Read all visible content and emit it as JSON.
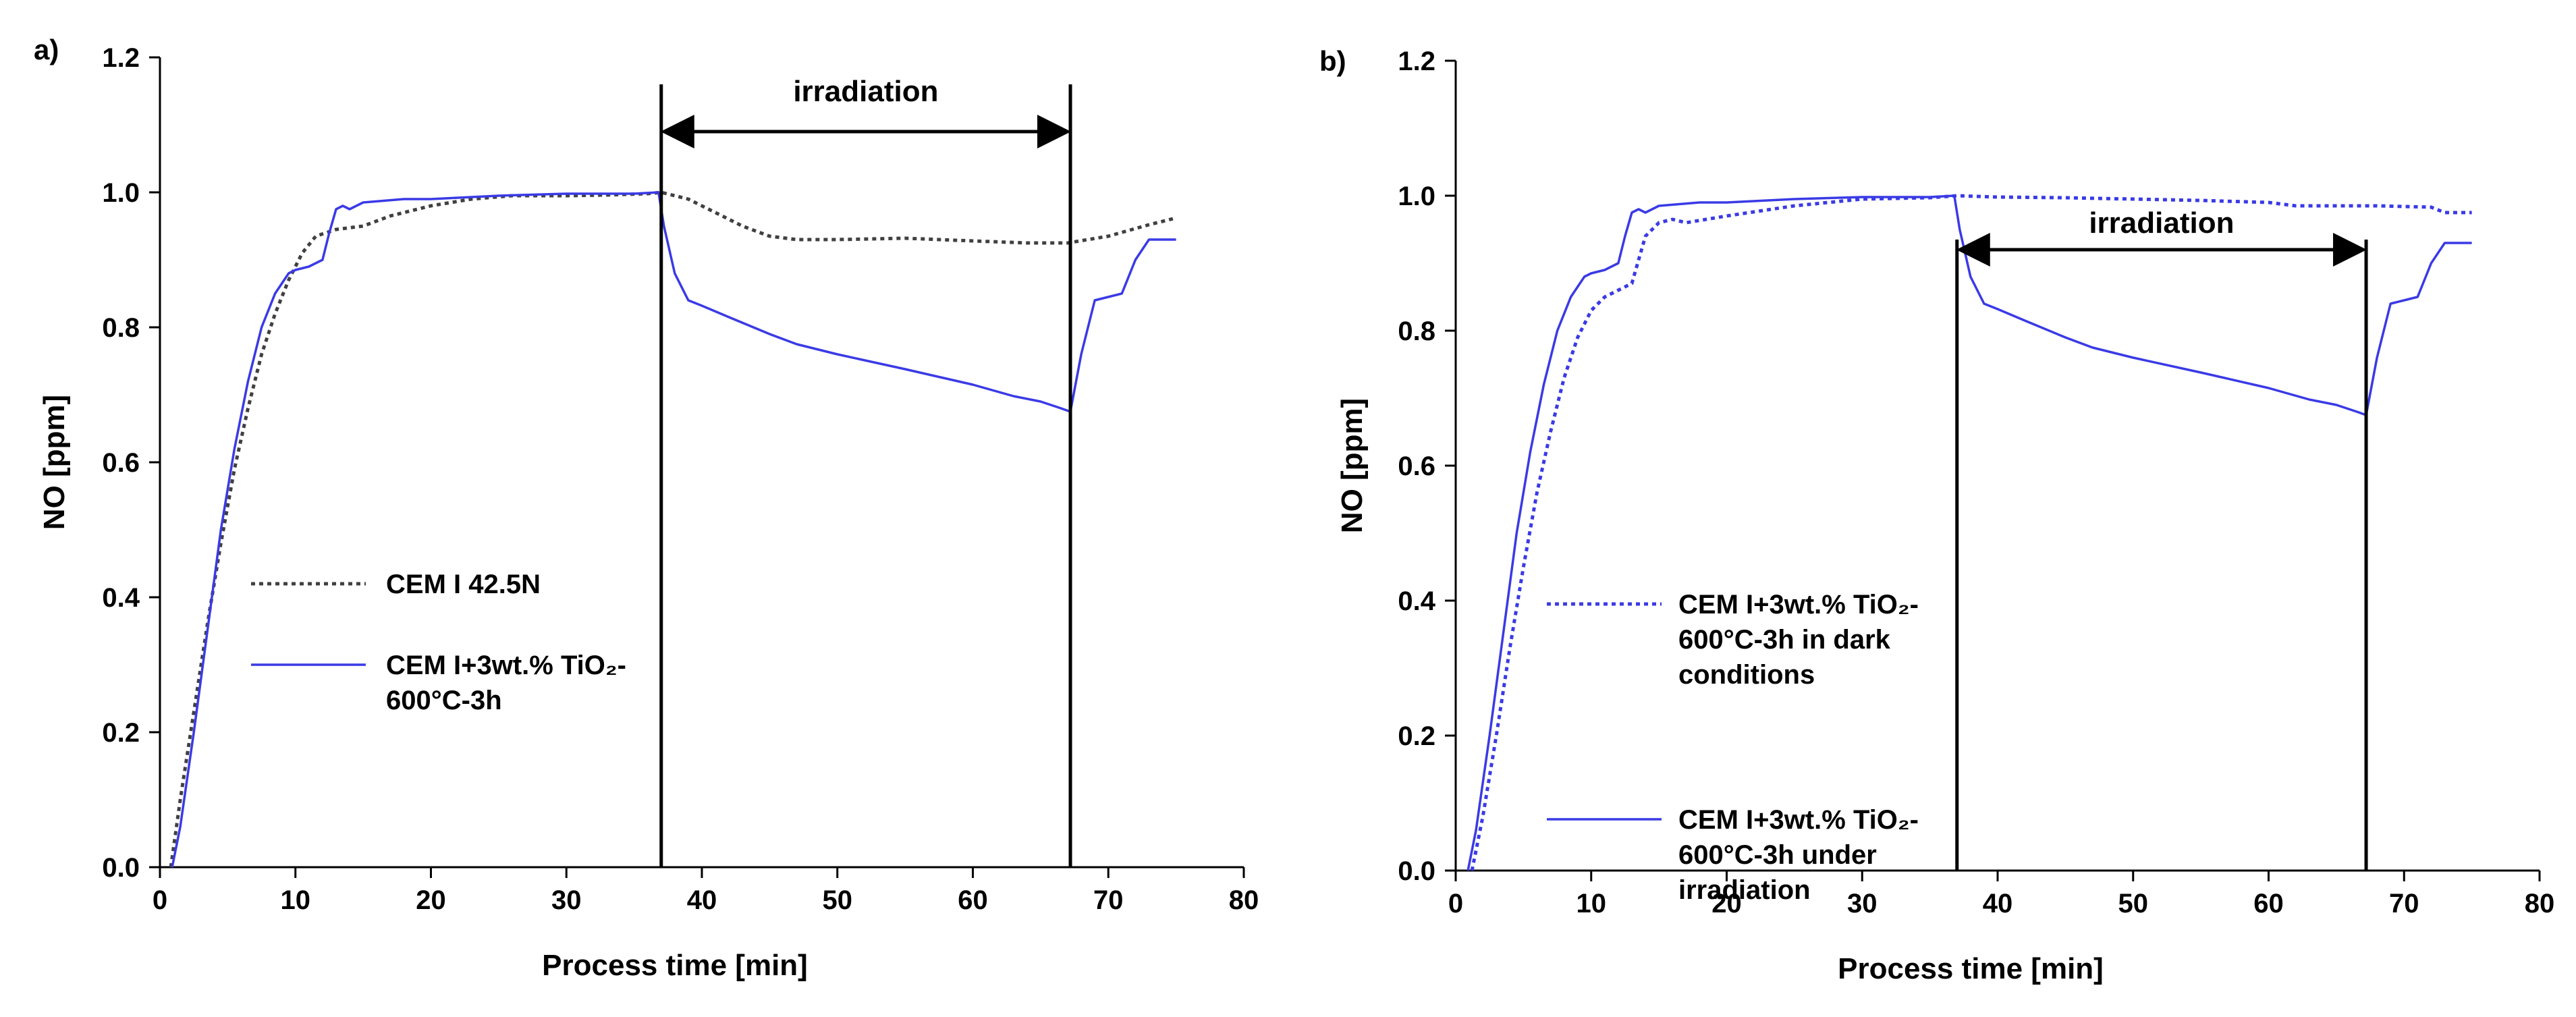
{
  "chart_data": [
    {
      "type": "line",
      "panel_label": "a)",
      "xlabel": "Process time [min]",
      "ylabel": "NO [ppm]",
      "xlim": [
        0,
        80
      ],
      "ylim": [
        0.0,
        1.2
      ],
      "xticks": [
        "0",
        "10",
        "20",
        "30",
        "40",
        "50",
        "60",
        "70",
        "80"
      ],
      "yticks": [
        "0.0",
        "0.2",
        "0.4",
        "0.6",
        "0.8",
        "1.0",
        "1.2"
      ],
      "annotation": {
        "label": "irradiation",
        "x_start": 37,
        "x_end": 67.2
      },
      "series": [
        {
          "name": "CEM I 42.5N",
          "legend_lines": [
            "CEM I 42.5N"
          ],
          "style": "dotted",
          "color": "#404040",
          "x": [
            0.8,
            1.5,
            2.5,
            3.5,
            4.5,
            5.5,
            6.5,
            7.5,
            8.5,
            9.5,
            10.5,
            11.5,
            13,
            15,
            17,
            20,
            23,
            26,
            30,
            33,
            36,
            37,
            39,
            41,
            43,
            45,
            47,
            50,
            55,
            60,
            64,
            67,
            70,
            73,
            75
          ],
          "y": [
            0.0,
            0.1,
            0.23,
            0.36,
            0.48,
            0.59,
            0.68,
            0.76,
            0.82,
            0.87,
            0.91,
            0.935,
            0.945,
            0.95,
            0.965,
            0.98,
            0.99,
            0.995,
            0.995,
            0.996,
            0.998,
            1.0,
            0.99,
            0.97,
            0.95,
            0.935,
            0.93,
            0.93,
            0.932,
            0.928,
            0.925,
            0.925,
            0.935,
            0.952,
            0.962
          ]
        },
        {
          "name": "CEM I+3wt.% TiO2-600°C-3h",
          "legend_lines": [
            "CEM I+3wt.% TiO₂-",
            "600°C-3h"
          ],
          "style": "solid",
          "color": "#3a3ae6",
          "x": [
            0.9,
            1.5,
            2.5,
            3.5,
            4.5,
            5.5,
            6.5,
            7.5,
            8.5,
            9.5,
            10,
            11,
            12,
            12.5,
            13,
            13.5,
            14,
            15,
            18,
            20,
            25,
            30,
            35,
            36.8,
            37.2,
            38,
            39,
            40,
            42,
            45,
            47,
            50,
            55,
            60,
            63,
            65,
            66.5,
            67.2,
            68,
            69,
            70,
            71,
            72,
            73,
            74,
            75
          ],
          "y": [
            0.0,
            0.06,
            0.2,
            0.35,
            0.5,
            0.62,
            0.72,
            0.8,
            0.85,
            0.88,
            0.885,
            0.89,
            0.9,
            0.94,
            0.975,
            0.98,
            0.975,
            0.985,
            0.99,
            0.99,
            0.995,
            0.998,
            0.998,
            1.0,
            0.95,
            0.88,
            0.84,
            0.832,
            0.815,
            0.79,
            0.775,
            0.76,
            0.738,
            0.715,
            0.698,
            0.69,
            0.68,
            0.675,
            0.76,
            0.84,
            0.845,
            0.85,
            0.9,
            0.93,
            0.93,
            0.93
          ]
        }
      ]
    },
    {
      "type": "line",
      "panel_label": "b)",
      "xlabel": "Process time [min]",
      "ylabel": "NO [ppm]",
      "xlim": [
        0,
        80
      ],
      "ylim": [
        0.0,
        1.2
      ],
      "xticks": [
        "0",
        "10",
        "20",
        "30",
        "40",
        "50",
        "60",
        "70",
        "80"
      ],
      "yticks": [
        "0.0",
        "0.2",
        "0.4",
        "0.6",
        "0.8",
        "1.0",
        "1.2"
      ],
      "annotation": {
        "label": "irradiation",
        "x_start": 37,
        "x_end": 67.2
      },
      "series": [
        {
          "name": "CEM I+3wt.% TiO2-600°C-3h in dark conditions",
          "legend_lines": [
            "CEM I+3wt.% TiO₂-",
            "600°C-3h in dark",
            "conditions"
          ],
          "style": "dotted",
          "color": "#3a3ae6",
          "x": [
            1.2,
            2,
            3,
            4,
            5,
            6,
            7,
            8,
            9,
            10,
            11,
            12,
            13,
            14,
            15,
            16,
            17,
            20,
            25,
            30,
            35,
            37,
            40,
            45,
            50,
            55,
            60,
            62,
            65,
            68,
            70,
            72,
            73,
            75
          ],
          "y": [
            0.0,
            0.08,
            0.2,
            0.33,
            0.45,
            0.56,
            0.65,
            0.73,
            0.79,
            0.83,
            0.85,
            0.86,
            0.87,
            0.94,
            0.96,
            0.965,
            0.96,
            0.97,
            0.985,
            0.995,
            0.997,
            1.0,
            0.998,
            0.997,
            0.995,
            0.993,
            0.99,
            0.985,
            0.985,
            0.985,
            0.984,
            0.983,
            0.975,
            0.975
          ]
        },
        {
          "name": "CEM I+3wt.% TiO2-600°C-3h under irradiation",
          "legend_lines": [
            "CEM I+3wt.% TiO₂-",
            "600°C-3h under",
            "irradiation"
          ],
          "style": "solid",
          "color": "#3a3ae6",
          "x": [
            0.9,
            1.5,
            2.5,
            3.5,
            4.5,
            5.5,
            6.5,
            7.5,
            8.5,
            9.5,
            10,
            11,
            12,
            12.5,
            13,
            13.5,
            14,
            15,
            18,
            20,
            25,
            30,
            35,
            36.8,
            37.2,
            38,
            39,
            40,
            42,
            45,
            47,
            50,
            55,
            60,
            63,
            65,
            66.5,
            67.2,
            68,
            69,
            70,
            71,
            72,
            73,
            74,
            75
          ],
          "y": [
            0.0,
            0.06,
            0.2,
            0.35,
            0.5,
            0.62,
            0.72,
            0.8,
            0.85,
            0.88,
            0.885,
            0.89,
            0.9,
            0.94,
            0.975,
            0.98,
            0.975,
            0.985,
            0.99,
            0.99,
            0.995,
            0.998,
            0.998,
            1.0,
            0.95,
            0.88,
            0.84,
            0.832,
            0.815,
            0.79,
            0.775,
            0.76,
            0.738,
            0.715,
            0.698,
            0.69,
            0.68,
            0.675,
            0.76,
            0.84,
            0.845,
            0.85,
            0.9,
            0.93,
            0.93,
            0.93
          ]
        }
      ]
    }
  ]
}
